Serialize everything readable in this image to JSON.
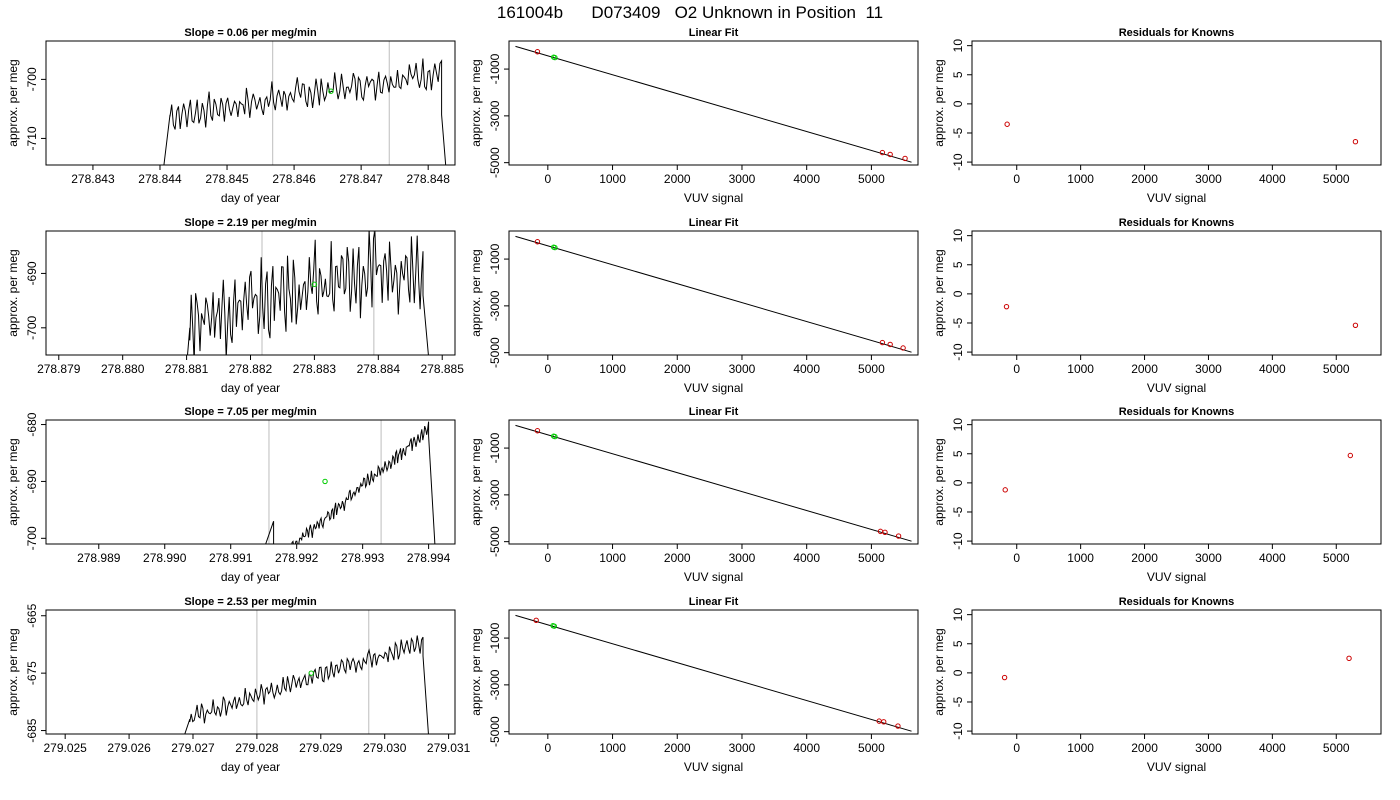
{
  "figure": {
    "title": "161004b      D073409   O2 Unknown in Position  11"
  },
  "chart_data": [
    {
      "type": "line",
      "panel": "timeseries",
      "row": 0,
      "title": "Slope =  0.06  per meg/min",
      "xlabel": "day of year",
      "ylabel": "approx. per meg",
      "xlim": [
        278.8423,
        278.8484
      ],
      "ylim": [
        -714.5,
        -693.5
      ],
      "xticks": [
        278.843,
        278.844,
        278.845,
        278.846,
        278.847,
        278.848
      ],
      "xtick_labels": [
        "278.843",
        "278.844",
        "278.845",
        "278.846",
        "278.847",
        "278.848"
      ],
      "yticks": [
        -700,
        -710
      ],
      "ytick_labels": [
        "-700",
        "-710"
      ],
      "vlines": [
        278.84568,
        278.84742
      ],
      "trace": {
        "start": 278.844,
        "end": 278.8483,
        "base": -702.5,
        "slope": 1.3,
        "ampl": 3.2,
        "rise": [
          [
            278.844,
            -720
          ],
          [
            278.84415,
            -706
          ]
        ],
        "fall": [
          [
            278.8482,
            -706
          ],
          [
            278.8483,
            -720
          ]
        ]
      },
      "marker": {
        "x": 278.84655,
        "y": -702.0,
        "color": "#00cc00"
      },
      "color": "#000000"
    },
    {
      "type": "scatter",
      "panel": "linear_fit",
      "row": 0,
      "title": "Linear Fit",
      "xlabel": "VUV signal",
      "ylabel": "approx. per meg",
      "xlim": [
        -600,
        5720
      ],
      "ylim": [
        -5100,
        200
      ],
      "xticks": [
        0,
        1000,
        2000,
        3000,
        4000,
        5000
      ],
      "xtick_labels": [
        "0",
        "1000",
        "2000",
        "3000",
        "4000",
        "5000"
      ],
      "yticks": [
        -1000,
        -3000,
        -5000
      ],
      "ytick_labels": [
        "-1000",
        "-3000",
        "-5000"
      ],
      "fit_line": {
        "x": [
          -500,
          5620
        ],
        "y": [
          -30,
          -4980
        ]
      },
      "knowns": {
        "x": [
          -160,
          5170,
          5290,
          5520
        ],
        "y": [
          -260,
          -4570,
          -4650,
          -4820
        ],
        "color": "#cc0000"
      },
      "unknown": {
        "x": [
          90,
          110
        ],
        "y": [
          -490,
          -510
        ],
        "color": "#00cc00"
      }
    },
    {
      "type": "scatter",
      "panel": "residuals",
      "row": 0,
      "title": "Residuals for Knowns",
      "xlabel": "VUV signal",
      "ylabel": "approx. per meg",
      "xlim": [
        -700,
        5700
      ],
      "ylim": [
        -10.5,
        10.8
      ],
      "xticks": [
        0,
        1000,
        2000,
        3000,
        4000,
        5000
      ],
      "xtick_labels": [
        "0",
        "1000",
        "2000",
        "3000",
        "4000",
        "5000"
      ],
      "yticks": [
        10,
        5,
        0,
        -5,
        -10
      ],
      "ytick_labels": [
        "10",
        "5",
        "0",
        "-5",
        "-10"
      ],
      "points": {
        "x": [
          -150,
          5300
        ],
        "y": [
          -3.5,
          -6.5
        ],
        "color": "#cc0000"
      }
    },
    {
      "type": "line",
      "panel": "timeseries",
      "row": 1,
      "title": "Slope =  2.19  per meg/min",
      "xlabel": "day of year",
      "ylabel": "approx. per meg",
      "xlim": [
        278.8788,
        278.8852
      ],
      "ylim": [
        -705.0,
        -682.2
      ],
      "xticks": [
        278.879,
        278.88,
        278.881,
        278.882,
        278.883,
        278.884,
        278.885
      ],
      "xtick_labels": [
        "278.879",
        "278.880",
        "278.881",
        "278.882",
        "278.883",
        "278.884",
        "278.885"
      ],
      "yticks": [
        -690,
        -700
      ],
      "ytick_labels": [
        "-690",
        "-700"
      ],
      "vlines": [
        278.88218,
        278.88393
      ],
      "trace": {
        "start": 278.881,
        "end": 278.8848,
        "base": -693.0,
        "slope": 2.0,
        "ampl": 9.0,
        "rise": [
          [
            278.881,
            -707
          ],
          [
            278.88105,
            -700
          ]
        ],
        "fall": [
          [
            278.8847,
            -694
          ],
          [
            278.8848,
            -707
          ]
        ]
      },
      "marker": {
        "x": 278.883,
        "y": -692.0,
        "color": "#00cc00"
      },
      "color": "#000000"
    },
    {
      "type": "scatter",
      "panel": "linear_fit",
      "row": 1,
      "title": "Linear Fit",
      "xlabel": "VUV signal",
      "ylabel": "approx. per meg",
      "xlim": [
        -600,
        5720
      ],
      "ylim": [
        -5100,
        200
      ],
      "xticks": [
        0,
        1000,
        2000,
        3000,
        4000,
        5000
      ],
      "xtick_labels": [
        "0",
        "1000",
        "2000",
        "3000",
        "4000",
        "5000"
      ],
      "yticks": [
        -1000,
        -3000,
        -5000
      ],
      "ytick_labels": [
        "-1000",
        "-3000",
        "-5000"
      ],
      "fit_line": {
        "x": [
          -500,
          5620
        ],
        "y": [
          -30,
          -4980
        ]
      },
      "knowns": {
        "x": [
          -160,
          5170,
          5290,
          5490
        ],
        "y": [
          -260,
          -4570,
          -4650,
          -4800
        ],
        "color": "#cc0000"
      },
      "unknown": {
        "x": [
          90,
          110
        ],
        "y": [
          -490,
          -510
        ],
        "color": "#00cc00"
      }
    },
    {
      "type": "scatter",
      "panel": "residuals",
      "row": 1,
      "title": "Residuals for Knowns",
      "xlabel": "VUV signal",
      "ylabel": "approx. per meg",
      "xlim": [
        -700,
        5700
      ],
      "ylim": [
        -10.5,
        10.8
      ],
      "xticks": [
        0,
        1000,
        2000,
        3000,
        4000,
        5000
      ],
      "xtick_labels": [
        "0",
        "1000",
        "2000",
        "3000",
        "4000",
        "5000"
      ],
      "yticks": [
        10,
        5,
        0,
        -5,
        -10
      ],
      "ytick_labels": [
        "10",
        "5",
        "0",
        "-5",
        "-10"
      ],
      "points": {
        "x": [
          -160,
          5300
        ],
        "y": [
          -2.2,
          -5.4
        ],
        "color": "#cc0000"
      }
    },
    {
      "type": "line",
      "panel": "timeseries",
      "row": 2,
      "title": "Slope =  7.05  per meg/min",
      "xlabel": "day of year",
      "ylabel": "approx. per meg",
      "xlim": [
        278.9882,
        278.9944
      ],
      "ylim": [
        -701.0,
        -679.2
      ],
      "xticks": [
        278.989,
        278.99,
        278.991,
        278.992,
        278.993,
        278.994
      ],
      "xtick_labels": [
        "278.989",
        "278.990",
        "278.991",
        "278.992",
        "278.993",
        "278.994"
      ],
      "yticks": [
        -680,
        -690,
        -700
      ],
      "ytick_labels": [
        "-680",
        "-690",
        "-700"
      ],
      "vlines": [
        278.99158,
        278.99328
      ],
      "trace": {
        "start": 278.9915,
        "end": 278.9941,
        "base": -692.8,
        "slope": 7.0,
        "ampl": 1.6,
        "rise": [
          [
            278.9915,
            -702
          ],
          [
            278.99165,
            -697
          ]
        ],
        "fall": [
          [
            278.994,
            -682
          ],
          [
            278.9941,
            -702
          ]
        ]
      },
      "marker": {
        "x": 278.99243,
        "y": -690.0,
        "color": "#00cc00"
      },
      "color": "#000000"
    },
    {
      "type": "scatter",
      "panel": "linear_fit",
      "row": 2,
      "title": "Linear Fit",
      "xlabel": "VUV signal",
      "ylabel": "approx. per meg",
      "xlim": [
        -600,
        5720
      ],
      "ylim": [
        -5100,
        200
      ],
      "xticks": [
        0,
        1000,
        2000,
        3000,
        4000,
        5000
      ],
      "xtick_labels": [
        "0",
        "1000",
        "2000",
        "3000",
        "4000",
        "5000"
      ],
      "yticks": [
        -1000,
        -3000,
        -5000
      ],
      "ytick_labels": [
        "-1000",
        "-3000",
        "-5000"
      ],
      "fit_line": {
        "x": [
          -500,
          5620
        ],
        "y": [
          -30,
          -4980
        ]
      },
      "knowns": {
        "x": [
          -160,
          5140,
          5210,
          5420
        ],
        "y": [
          -260,
          -4560,
          -4600,
          -4760
        ],
        "color": "#cc0000"
      },
      "unknown": {
        "x": [
          90,
          110
        ],
        "y": [
          -490,
          -510
        ],
        "color": "#00cc00"
      }
    },
    {
      "type": "scatter",
      "panel": "residuals",
      "row": 2,
      "title": "Residuals for Knowns",
      "xlabel": "VUV signal",
      "ylabel": "approx. per meg",
      "xlim": [
        -700,
        5700
      ],
      "ylim": [
        -10.5,
        10.8
      ],
      "xticks": [
        0,
        1000,
        2000,
        3000,
        4000,
        5000
      ],
      "xtick_labels": [
        "0",
        "1000",
        "2000",
        "3000",
        "4000",
        "5000"
      ],
      "yticks": [
        10,
        5,
        0,
        -5,
        -10
      ],
      "ytick_labels": [
        "10",
        "5",
        "0",
        "-5",
        "-10"
      ],
      "points": {
        "x": [
          -180,
          5220
        ],
        "y": [
          -1.2,
          4.7
        ],
        "color": "#cc0000"
      }
    },
    {
      "type": "line",
      "panel": "timeseries",
      "row": 3,
      "title": "Slope =  2.53  per meg/min",
      "xlabel": "day of year",
      "ylabel": "approx. per meg",
      "xlim": [
        279.0247,
        279.0311
      ],
      "ylim": [
        -685.6,
        -664.0
      ],
      "xticks": [
        279.025,
        279.026,
        279.027,
        279.028,
        279.029,
        279.03,
        279.031
      ],
      "xtick_labels": [
        "279.025",
        "279.026",
        "279.027",
        "279.028",
        "279.029",
        "279.030",
        "279.031"
      ],
      "yticks": [
        -665,
        -675,
        -685
      ],
      "ytick_labels": [
        "-665",
        "-675",
        "-685"
      ],
      "vlines": [
        279.028,
        279.02975
      ],
      "trace": {
        "start": 279.0268,
        "end": 279.0307,
        "base": -676.2,
        "slope": 2.5,
        "ampl": 2.0,
        "rise": [
          [
            279.0268,
            -688
          ],
          [
            279.02695,
            -683
          ]
        ],
        "fall": [
          [
            279.0306,
            -672
          ],
          [
            279.0307,
            -688
          ]
        ]
      },
      "marker": {
        "x": 279.02885,
        "y": -675.0,
        "color": "#00cc00"
      },
      "color": "#000000"
    },
    {
      "type": "scatter",
      "panel": "linear_fit",
      "row": 3,
      "title": "Linear Fit",
      "xlabel": "VUV signal",
      "ylabel": "approx. per meg",
      "xlim": [
        -600,
        5720
      ],
      "ylim": [
        -5100,
        200
      ],
      "xticks": [
        0,
        1000,
        2000,
        3000,
        4000,
        5000
      ],
      "xtick_labels": [
        "0",
        "1000",
        "2000",
        "3000",
        "4000",
        "5000"
      ],
      "yticks": [
        -1000,
        -3000,
        -5000
      ],
      "ytick_labels": [
        "-1000",
        "-3000",
        "-5000"
      ],
      "fit_line": {
        "x": [
          -500,
          5620
        ],
        "y": [
          -30,
          -4980
        ]
      },
      "knowns": {
        "x": [
          -180,
          5120,
          5190,
          5410
        ],
        "y": [
          -240,
          -4550,
          -4580,
          -4760
        ],
        "color": "#cc0000"
      },
      "unknown": {
        "x": [
          80,
          100
        ],
        "y": [
          -470,
          -490
        ],
        "color": "#00cc00"
      }
    },
    {
      "type": "scatter",
      "panel": "residuals",
      "row": 3,
      "title": "Residuals for Knowns",
      "xlabel": "VUV signal",
      "ylabel": "approx. per meg",
      "xlim": [
        -700,
        5700
      ],
      "ylim": [
        -10.5,
        10.8
      ],
      "xticks": [
        0,
        1000,
        2000,
        3000,
        4000,
        5000
      ],
      "xtick_labels": [
        "0",
        "1000",
        "2000",
        "3000",
        "4000",
        "5000"
      ],
      "yticks": [
        10,
        5,
        0,
        -5,
        -10
      ],
      "ytick_labels": [
        "10",
        "5",
        "0",
        "-5",
        "-10"
      ],
      "points": {
        "x": [
          -190,
          5200
        ],
        "y": [
          -0.8,
          2.5
        ],
        "color": "#cc0000"
      }
    }
  ]
}
